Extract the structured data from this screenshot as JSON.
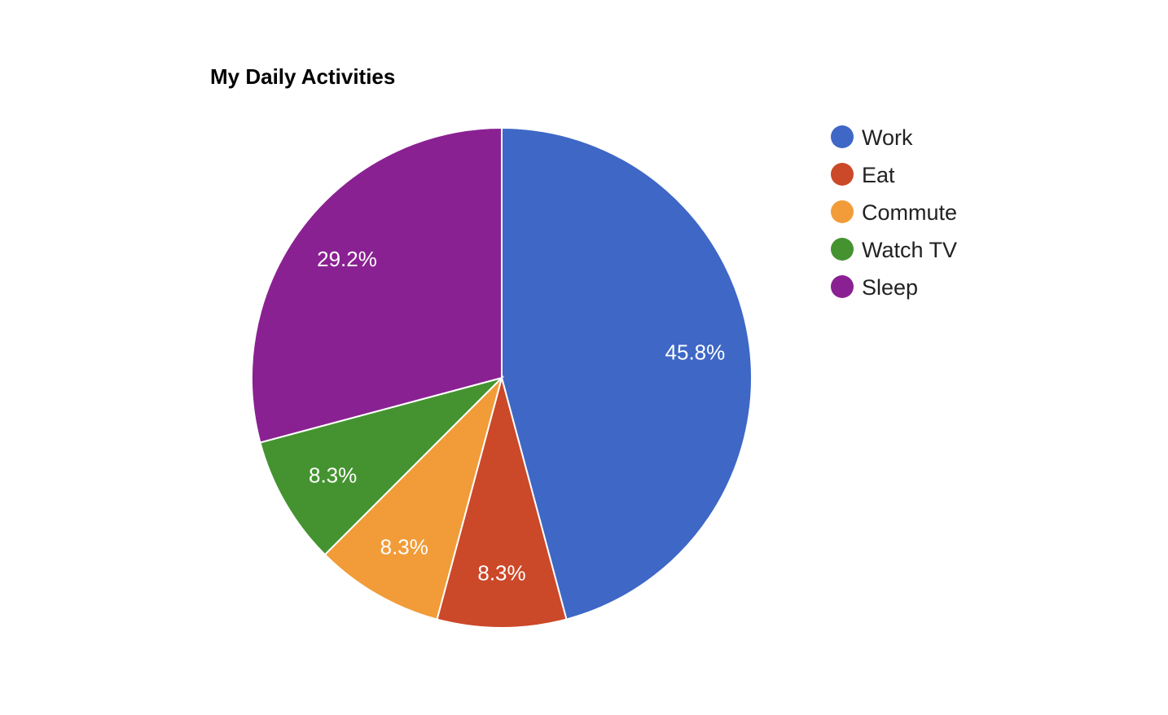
{
  "chart_data": {
    "type": "pie",
    "title": "My Daily Activities",
    "start_angle_deg": 0,
    "direction": "clockwise",
    "legend_position": "right",
    "slices": [
      {
        "label": "Work",
        "value": 11,
        "percent_label": "45.8%",
        "color": "#3e67c6"
      },
      {
        "label": "Eat",
        "value": 2,
        "percent_label": "8.3%",
        "color": "#cb4828"
      },
      {
        "label": "Commute",
        "value": 2,
        "percent_label": "8.3%",
        "color": "#f19c38"
      },
      {
        "label": "Watch TV",
        "value": 2,
        "percent_label": "8.3%",
        "color": "#449330"
      },
      {
        "label": "Sleep",
        "value": 7,
        "percent_label": "29.2%",
        "color": "#8a2192"
      }
    ]
  }
}
